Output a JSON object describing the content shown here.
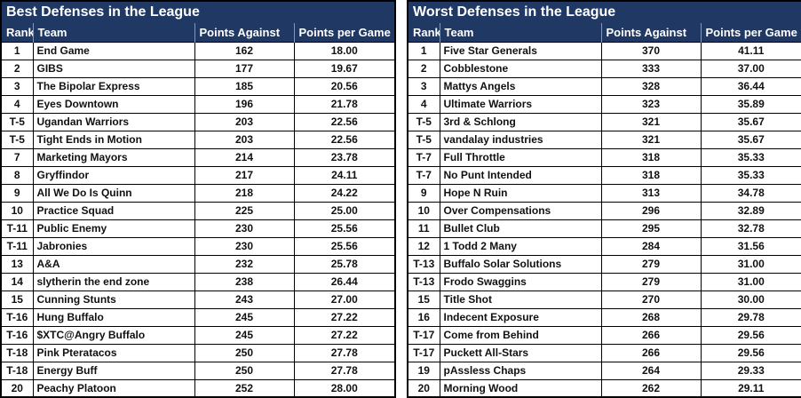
{
  "colors": {
    "header_navy": "#1f3864",
    "header_text": "#ffffff",
    "grid_border": "#000000",
    "row_background": "#ffffff"
  },
  "chart_data": [
    {
      "type": "table",
      "title": "Best Defenses in the League",
      "columns": [
        "Rank",
        "Team",
        "Points Against",
        "Points per Game"
      ],
      "rows": [
        [
          "1",
          "End Game",
          "162",
          "18.00"
        ],
        [
          "2",
          "GIBS",
          "177",
          "19.67"
        ],
        [
          "3",
          "The Bipolar Express",
          "185",
          "20.56"
        ],
        [
          "4",
          "Eyes Downtown",
          "196",
          "21.78"
        ],
        [
          "T-5",
          "Ugandan Warriors",
          "203",
          "22.56"
        ],
        [
          "T-5",
          "Tight Ends in Motion",
          "203",
          "22.56"
        ],
        [
          "7",
          "Marketing Mayors",
          "214",
          "23.78"
        ],
        [
          "8",
          "Gryffindor",
          "217",
          "24.11"
        ],
        [
          "9",
          "All We Do Is Quinn",
          "218",
          "24.22"
        ],
        [
          "10",
          "Practice Squad",
          "225",
          "25.00"
        ],
        [
          "T-11",
          "Public Enemy",
          "230",
          "25.56"
        ],
        [
          "T-11",
          "Jabronies",
          "230",
          "25.56"
        ],
        [
          "13",
          "A&A",
          "232",
          "25.78"
        ],
        [
          "14",
          "slytherin the end zone",
          "238",
          "26.44"
        ],
        [
          "15",
          "Cunning Stunts",
          "243",
          "27.00"
        ],
        [
          "T-16",
          "Hung Buffalo",
          "245",
          "27.22"
        ],
        [
          "T-16",
          "$XTC@Angry Buffalo",
          "245",
          "27.22"
        ],
        [
          "T-18",
          "Pink Pteratacos",
          "250",
          "27.78"
        ],
        [
          "T-18",
          "Energy Buff",
          "250",
          "27.78"
        ],
        [
          "20",
          "Peachy Platoon",
          "252",
          "28.00"
        ]
      ]
    },
    {
      "type": "table",
      "title": "Worst Defenses in the League",
      "columns": [
        "Rank",
        "Team",
        "Points Against",
        "Points per Game"
      ],
      "rows": [
        [
          "1",
          "Five Star Generals",
          "370",
          "41.11"
        ],
        [
          "2",
          "Cobblestone",
          "333",
          "37.00"
        ],
        [
          "3",
          "Mattys Angels",
          "328",
          "36.44"
        ],
        [
          "4",
          "Ultimate Warriors",
          "323",
          "35.89"
        ],
        [
          "T-5",
          "3rd & Schlong",
          "321",
          "35.67"
        ],
        [
          "T-5",
          "vandalay industries",
          "321",
          "35.67"
        ],
        [
          "T-7",
          "Full Throttle",
          "318",
          "35.33"
        ],
        [
          "T-7",
          "No Punt Intended",
          "318",
          "35.33"
        ],
        [
          "9",
          "Hope N Ruin",
          "313",
          "34.78"
        ],
        [
          "10",
          "Over Compensations",
          "296",
          "32.89"
        ],
        [
          "11",
          "Bullet Club",
          "295",
          "32.78"
        ],
        [
          "12",
          "1 Todd 2 Many",
          "284",
          "31.56"
        ],
        [
          "T-13",
          "Buffalo Solar Solutions",
          "279",
          "31.00"
        ],
        [
          "T-13",
          "Frodo Swaggins",
          "279",
          "31.00"
        ],
        [
          "15",
          "Title Shot",
          "270",
          "30.00"
        ],
        [
          "16",
          "Indecent Exposure",
          "268",
          "29.78"
        ],
        [
          "T-17",
          "Come from Behind",
          "266",
          "29.56"
        ],
        [
          "T-17",
          "Puckett All-Stars",
          "266",
          "29.56"
        ],
        [
          "19",
          "pAssless Chaps",
          "264",
          "29.33"
        ],
        [
          "20",
          "Morning Wood",
          "262",
          "29.11"
        ]
      ]
    }
  ]
}
